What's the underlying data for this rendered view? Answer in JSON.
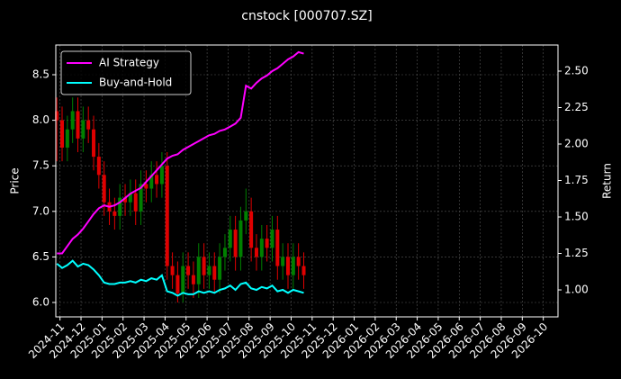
{
  "chart_data": {
    "type": "candlestick",
    "title": "cnstock [000707.SZ]",
    "ylabel": "Price",
    "y2label": "Return",
    "x": [
      -0.15,
      0.1,
      0.35,
      0.6,
      0.85,
      1.1,
      1.35,
      1.6,
      1.85,
      2.1,
      2.35,
      2.6,
      2.85,
      3.1,
      3.35,
      3.6,
      3.85,
      4.1,
      4.35,
      4.6,
      4.85,
      5.1,
      5.35,
      5.6,
      5.85,
      6.1,
      6.35,
      6.6,
      6.85,
      7.1,
      7.35,
      7.6,
      7.85,
      8.1,
      8.35,
      8.6,
      8.85,
      9.1,
      9.35,
      9.6,
      9.85,
      10.1,
      10.35,
      10.6,
      10.85,
      11.1,
      11.35,
      11.6
    ],
    "open": [
      8.1,
      8.0,
      7.7,
      7.9,
      8.1,
      7.8,
      8.0,
      7.9,
      7.6,
      7.4,
      7.1,
      7.0,
      6.95,
      7.15,
      7.1,
      7.2,
      7.0,
      7.3,
      7.25,
      7.4,
      7.3,
      7.5,
      6.4,
      6.3,
      6.1,
      6.4,
      6.3,
      6.2,
      6.5,
      6.3,
      6.4,
      6.25,
      6.5,
      6.6,
      6.8,
      6.5,
      6.9,
      7.0,
      6.6,
      6.5,
      6.7,
      6.6,
      6.8,
      6.4,
      6.5,
      6.3,
      6.5,
      6.4
    ],
    "high": [
      8.25,
      8.15,
      8.05,
      8.25,
      8.25,
      8.15,
      8.15,
      8.05,
      7.75,
      7.55,
      7.25,
      7.15,
      7.3,
      7.3,
      7.35,
      7.35,
      7.45,
      7.45,
      7.55,
      7.55,
      7.65,
      7.65,
      6.55,
      6.45,
      6.55,
      6.55,
      6.45,
      6.65,
      6.65,
      6.55,
      6.55,
      6.65,
      6.75,
      6.95,
      6.95,
      7.05,
      7.25,
      7.15,
      6.75,
      6.85,
      6.85,
      6.95,
      6.95,
      6.65,
      6.65,
      6.65,
      6.65,
      6.55
    ],
    "low": [
      7.55,
      7.55,
      7.55,
      7.75,
      7.65,
      7.65,
      7.75,
      7.45,
      7.25,
      6.95,
      6.85,
      6.8,
      6.8,
      6.95,
      6.95,
      6.85,
      6.85,
      7.1,
      7.1,
      7.15,
      7.15,
      6.25,
      6.15,
      6.0,
      6.0,
      6.15,
      6.05,
      6.05,
      6.15,
      6.15,
      6.1,
      6.1,
      6.35,
      6.45,
      6.35,
      6.35,
      6.75,
      6.45,
      6.35,
      6.35,
      6.45,
      6.45,
      6.25,
      6.25,
      6.15,
      6.15,
      6.25,
      6.15
    ],
    "close": [
      8.0,
      7.7,
      7.9,
      8.1,
      7.8,
      8.0,
      7.9,
      7.6,
      7.4,
      7.1,
      7.0,
      6.95,
      7.15,
      7.1,
      7.2,
      7.0,
      7.3,
      7.25,
      7.4,
      7.3,
      7.5,
      6.4,
      6.3,
      6.1,
      6.4,
      6.3,
      6.2,
      6.5,
      6.3,
      6.4,
      6.25,
      6.5,
      6.6,
      6.8,
      6.5,
      6.9,
      7.0,
      6.6,
      6.5,
      6.7,
      6.6,
      6.8,
      6.4,
      6.5,
      6.3,
      6.5,
      6.4,
      6.3
    ],
    "up_color": "#008000",
    "down_color": "#e00000",
    "series": [
      {
        "name": "AI Strategy",
        "color": "#ff00ff",
        "axis": "y2",
        "values": [
          1.25,
          1.25,
          1.3,
          1.35,
          1.38,
          1.42,
          1.47,
          1.52,
          1.56,
          1.58,
          1.57,
          1.58,
          1.6,
          1.63,
          1.66,
          1.68,
          1.7,
          1.74,
          1.78,
          1.82,
          1.86,
          1.9,
          1.92,
          1.93,
          1.96,
          1.98,
          2.0,
          2.02,
          2.04,
          2.06,
          2.07,
          2.09,
          2.1,
          2.12,
          2.14,
          2.18,
          2.4,
          2.38,
          2.42,
          2.45,
          2.47,
          2.5,
          2.52,
          2.55,
          2.58,
          2.6,
          2.63,
          2.62
        ]
      },
      {
        "name": "Buy-and-Hold",
        "color": "#00ffff",
        "axis": "y2",
        "values": [
          1.18,
          1.15,
          1.17,
          1.2,
          1.16,
          1.18,
          1.17,
          1.14,
          1.1,
          1.05,
          1.04,
          1.04,
          1.05,
          1.05,
          1.06,
          1.05,
          1.07,
          1.06,
          1.08,
          1.07,
          1.1,
          0.99,
          0.98,
          0.96,
          0.98,
          0.97,
          0.97,
          0.99,
          0.98,
          0.99,
          0.98,
          1.0,
          1.01,
          1.03,
          1.0,
          1.04,
          1.05,
          1.01,
          1.0,
          1.02,
          1.01,
          1.03,
          0.99,
          1.0,
          0.98,
          1.0,
          0.99,
          0.98
        ]
      }
    ],
    "xlim": [
      -0.2,
      23.7
    ],
    "xticks": [
      {
        "value": 0,
        "label": "2024-11"
      },
      {
        "value": 1,
        "label": "2024-12"
      },
      {
        "value": 2,
        "label": "2025-01"
      },
      {
        "value": 3,
        "label": "2025-02"
      },
      {
        "value": 4,
        "label": "2025-03"
      },
      {
        "value": 5,
        "label": "2025-04"
      },
      {
        "value": 6,
        "label": "2025-05"
      },
      {
        "value": 7,
        "label": "2025-06"
      },
      {
        "value": 8,
        "label": "2025-07"
      },
      {
        "value": 9,
        "label": "2025-08"
      },
      {
        "value": 10,
        "label": "2025-09"
      },
      {
        "value": 11,
        "label": "2025-10"
      },
      {
        "value": 12,
        "label": "2025-11"
      },
      {
        "value": 13,
        "label": "2025-12"
      },
      {
        "value": 14,
        "label": "2026-01"
      },
      {
        "value": 15,
        "label": "2026-02"
      },
      {
        "value": 16,
        "label": "2026-03"
      },
      {
        "value": 17,
        "label": "2026-04"
      },
      {
        "value": 18,
        "label": "2026-05"
      },
      {
        "value": 19,
        "label": "2026-06"
      },
      {
        "value": 20,
        "label": "2026-07"
      },
      {
        "value": 21,
        "label": "2026-08"
      },
      {
        "value": 22,
        "label": "2026-09"
      },
      {
        "value": 23,
        "label": "2026-10"
      }
    ],
    "ylim": [
      5.842,
      8.826
    ],
    "yticks": [
      {
        "value": 6,
        "label": "6.0"
      },
      6.5,
      {
        "value": 7,
        "label": "7.0"
      },
      7.5,
      {
        "value": 8,
        "label": "8.0"
      },
      8.5
    ],
    "y2lim": [
      0.815,
      2.679
    ],
    "y2ticks": [
      {
        "value": 1,
        "label": "1.00"
      },
      1.25,
      {
        "value": 1.5,
        "label": "1.50"
      },
      1.75,
      {
        "value": 2,
        "label": "2.00"
      },
      2.25,
      {
        "value": 2.5,
        "label": "2.50"
      }
    ],
    "grid": true,
    "legend": "upper left"
  }
}
